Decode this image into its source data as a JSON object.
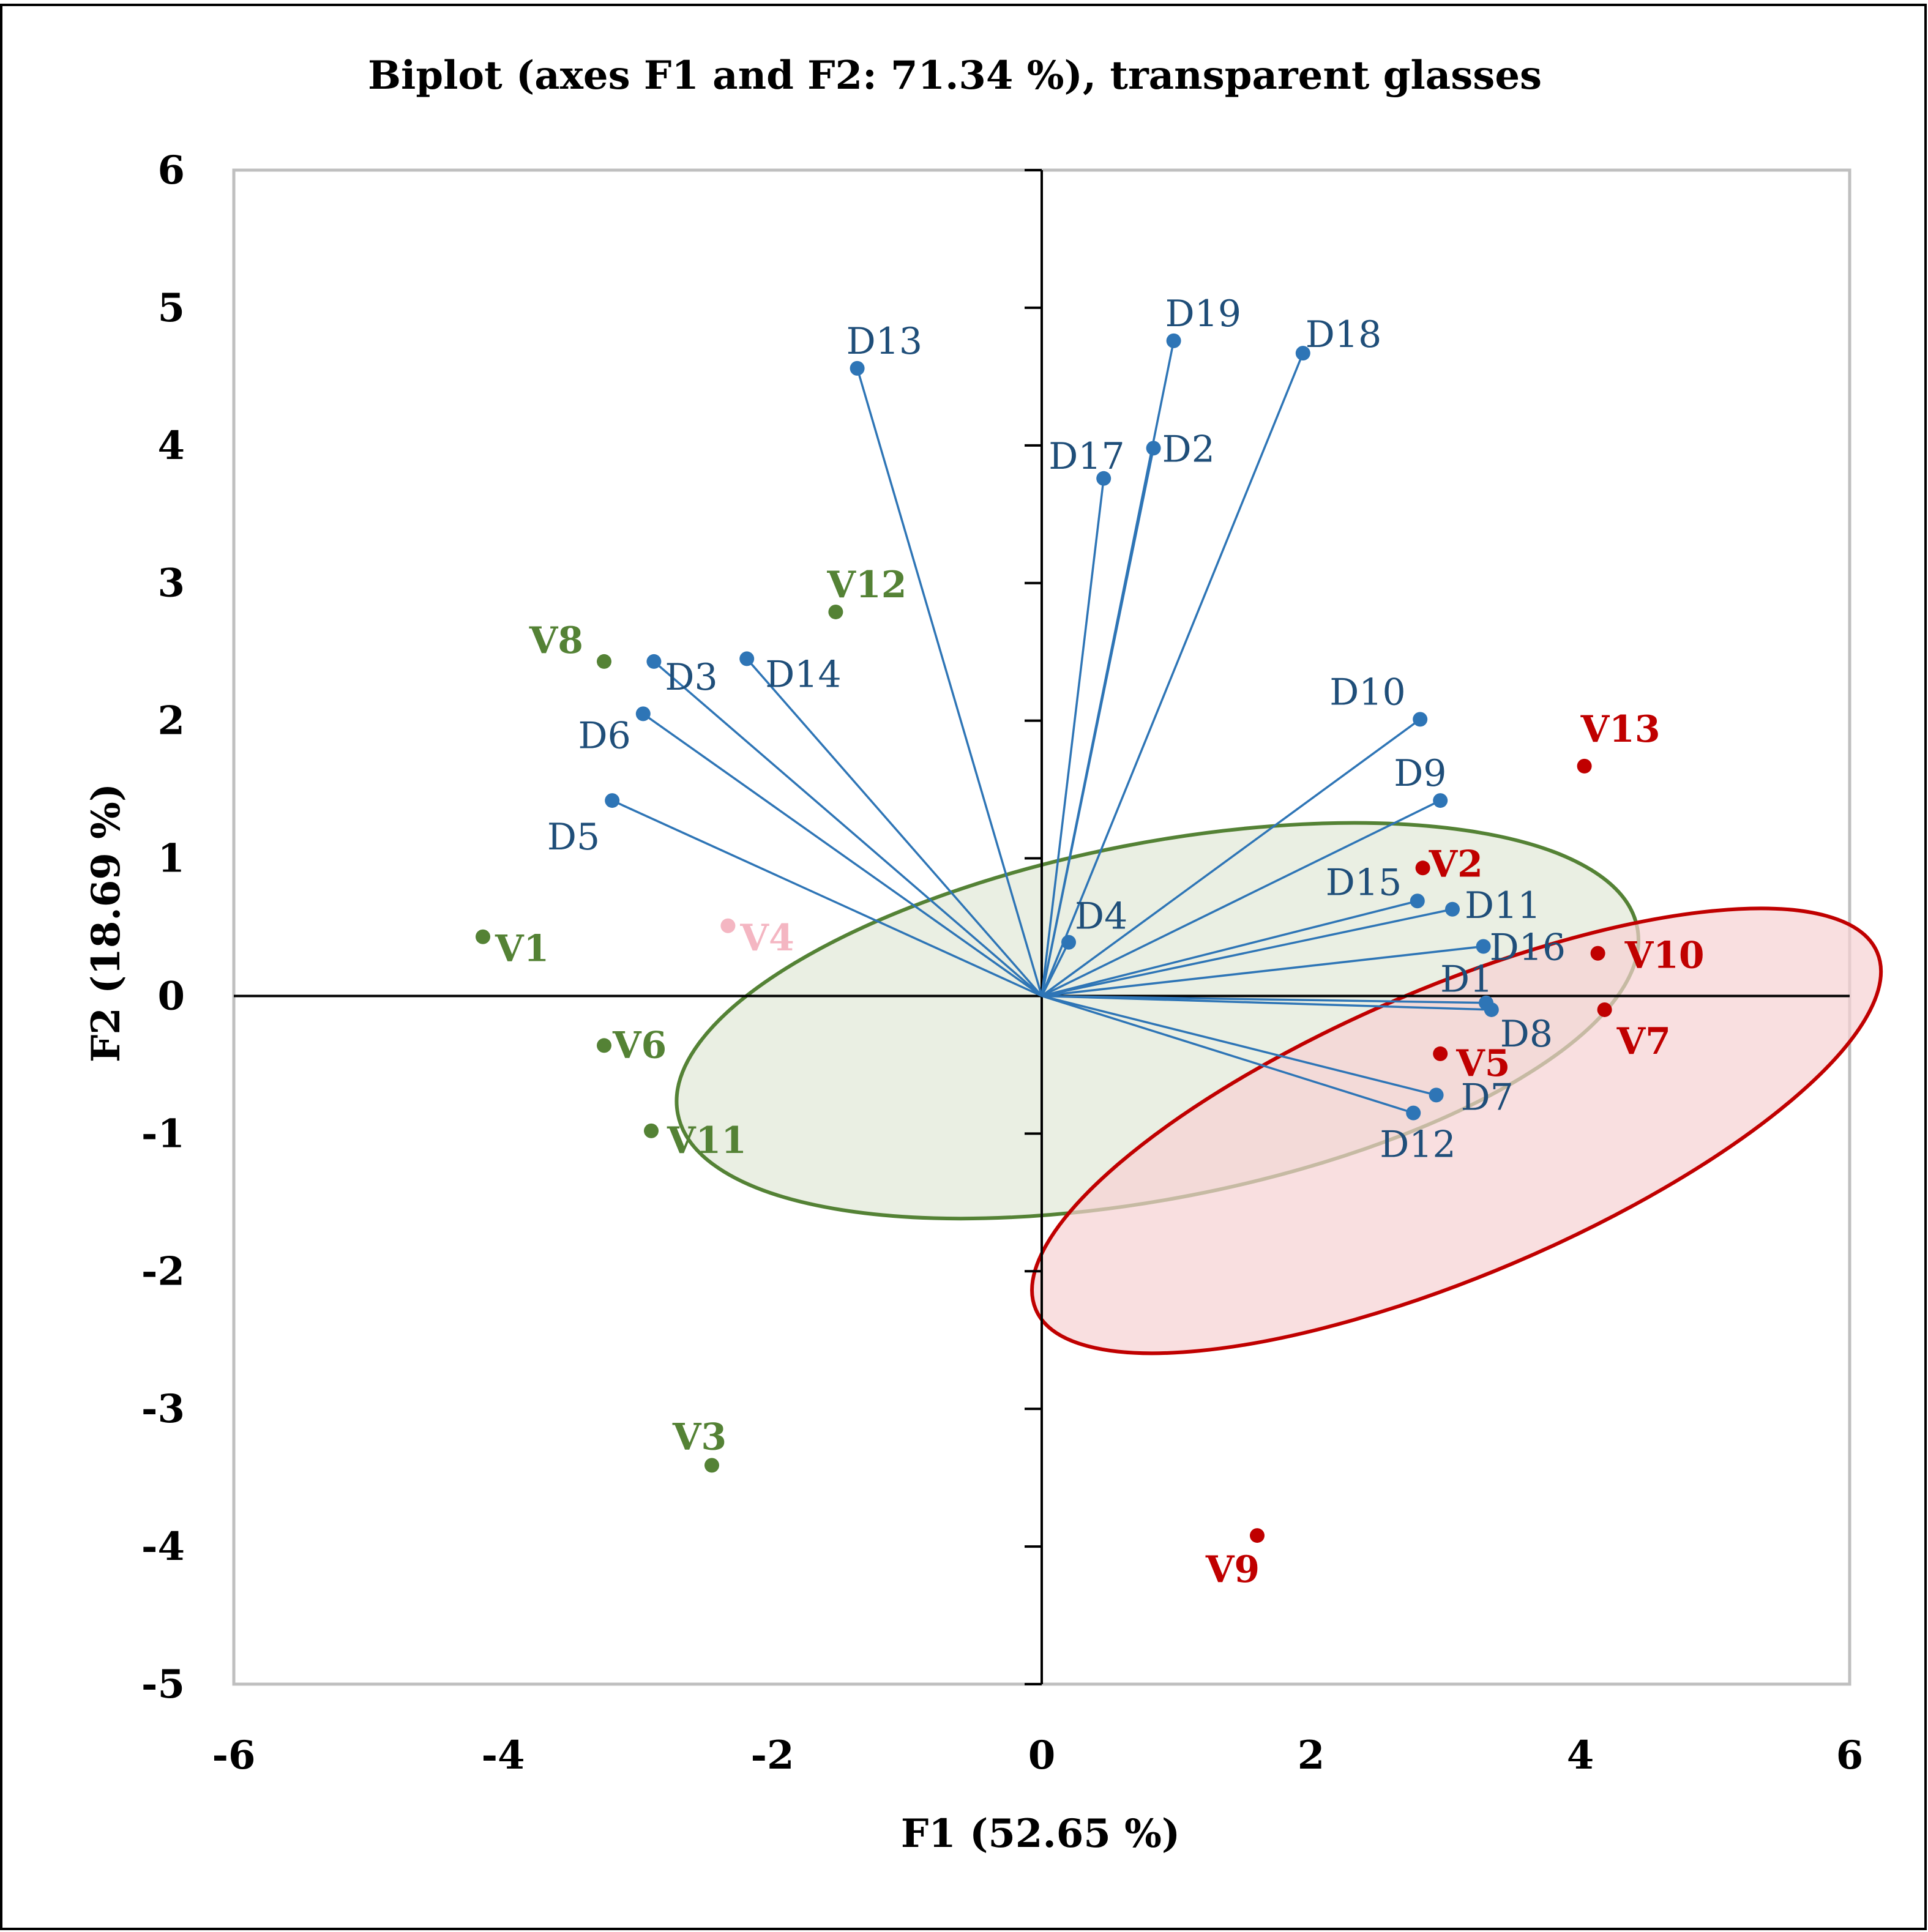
{
  "chart_data": {
    "type": "scatter",
    "subtype": "biplot",
    "title": "Biplot (axes F1 and F2: 71.34 %), transparent glasses",
    "xlabel": "F1 (52.65 %)",
    "ylabel": "F2 (18.69 %)",
    "xlim": [
      -6,
      6
    ],
    "ylim": [
      -5,
      6
    ],
    "xticks": [
      -6,
      -4,
      -2,
      0,
      2,
      4,
      6
    ],
    "yticks": [
      -5,
      -4,
      -3,
      -2,
      -1,
      0,
      1,
      2,
      3,
      4,
      5,
      6
    ],
    "grid": false,
    "colors": {
      "variables": "#2e75b6",
      "variable_labels": "#1f4e79",
      "group_green": "#548235",
      "group_red": "#c00000",
      "v4": "#f4b6c2",
      "ellipse_green_fill": "#e3e9da",
      "ellipse_red_fill": "#f6d1d3"
    },
    "variables": [
      {
        "name": "D1",
        "x": 3.3,
        "y": -0.05
      },
      {
        "name": "D2",
        "x": 0.83,
        "y": 3.98
      },
      {
        "name": "D3",
        "x": -2.88,
        "y": 2.43
      },
      {
        "name": "D4",
        "x": 0.2,
        "y": 0.39
      },
      {
        "name": "D5",
        "x": -3.19,
        "y": 1.42
      },
      {
        "name": "D6",
        "x": -2.96,
        "y": 2.05
      },
      {
        "name": "D7",
        "x": 2.93,
        "y": -0.72
      },
      {
        "name": "D8",
        "x": 3.34,
        "y": -0.1
      },
      {
        "name": "D9",
        "x": 2.96,
        "y": 1.42
      },
      {
        "name": "D10",
        "x": 2.81,
        "y": 2.01
      },
      {
        "name": "D11",
        "x": 3.05,
        "y": 0.63
      },
      {
        "name": "D12",
        "x": 2.76,
        "y": -0.85
      },
      {
        "name": "D13",
        "x": -1.37,
        "y": 4.56
      },
      {
        "name": "D14",
        "x": -2.19,
        "y": 2.45
      },
      {
        "name": "D15",
        "x": 2.79,
        "y": 0.69
      },
      {
        "name": "D16",
        "x": 3.28,
        "y": 0.36
      },
      {
        "name": "D17",
        "x": 0.46,
        "y": 3.76
      },
      {
        "name": "D18",
        "x": 1.94,
        "y": 4.67
      },
      {
        "name": "D19",
        "x": 0.98,
        "y": 4.76
      }
    ],
    "observations": [
      {
        "name": "V1",
        "x": -4.15,
        "y": 0.43,
        "group": "green"
      },
      {
        "name": "V2",
        "x": 2.83,
        "y": 0.93,
        "group": "red"
      },
      {
        "name": "V3",
        "x": -2.45,
        "y": -3.41,
        "group": "green"
      },
      {
        "name": "V4",
        "x": -2.33,
        "y": 0.51,
        "group": "pink"
      },
      {
        "name": "V5",
        "x": 2.96,
        "y": -0.42,
        "group": "red"
      },
      {
        "name": "V6",
        "x": -3.25,
        "y": -0.36,
        "group": "green"
      },
      {
        "name": "V7",
        "x": 4.18,
        "y": -0.1,
        "group": "red"
      },
      {
        "name": "V8",
        "x": -3.25,
        "y": 2.43,
        "group": "green"
      },
      {
        "name": "V9",
        "x": 1.6,
        "y": -3.92,
        "group": "red"
      },
      {
        "name": "V10",
        "x": 4.13,
        "y": 0.31,
        "group": "red"
      },
      {
        "name": "V11",
        "x": -2.9,
        "y": -0.98,
        "group": "green"
      },
      {
        "name": "V12",
        "x": -1.53,
        "y": 2.79,
        "group": "green"
      },
      {
        "name": "V13",
        "x": 4.03,
        "y": 1.67,
        "group": "red"
      }
    ],
    "ellipses": [
      {
        "name": "green-group-ellipse",
        "group": "green",
        "cx": 0.86,
        "cy": -0.18,
        "rx": 3.55,
        "ry": 1.32,
        "rotation_deg": 79
      },
      {
        "name": "red-group-ellipse",
        "group": "red",
        "cx": 3.08,
        "cy": -0.98,
        "rx": 3.32,
        "ry": 1.07,
        "rotation_deg": 67
      }
    ]
  }
}
